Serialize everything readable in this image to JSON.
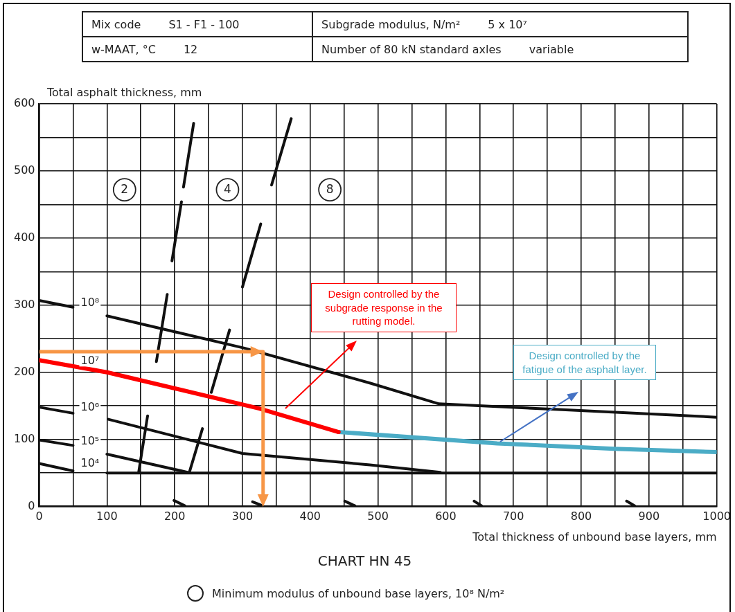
{
  "chart_data": {
    "type": "line",
    "title": "CHART HN 45",
    "xlabel": "Total thickness of unbound base layers, mm",
    "ylabel": "Total asphalt thickness, mm",
    "xlim": [
      0,
      1000
    ],
    "ylim": [
      0,
      600
    ],
    "xticks": [
      0,
      {
        "value": 50,
        "label": null
      },
      100,
      {
        "value": 150,
        "label": null
      },
      200,
      {
        "value": 250,
        "label": null
      },
      300,
      {
        "value": 350,
        "label": null
      },
      400,
      {
        "value": 450,
        "label": null
      },
      500,
      {
        "value": 550,
        "label": null
      },
      600,
      {
        "value": 650,
        "label": null
      },
      700,
      {
        "value": 750,
        "label": null
      },
      800,
      {
        "value": 850,
        "label": null
      },
      900,
      {
        "value": 950,
        "label": null
      },
      1000
    ],
    "yticks": [
      0,
      {
        "value": 50,
        "label": null
      },
      100,
      {
        "value": 150,
        "label": null
      },
      200,
      {
        "value": 250,
        "label": null
      },
      300,
      {
        "value": 350,
        "label": null
      },
      400,
      {
        "value": 450,
        "label": null
      },
      500,
      {
        "value": 550,
        "label": null
      },
      600
    ],
    "grid": true,
    "legend": false,
    "series": [
      {
        "name": "10⁸",
        "color": "#111111",
        "x": [
          0,
          50,
          75,
          100,
          303,
          488,
          590,
          756,
          1000
        ],
        "values": [
          307,
          297,
          null,
          284,
          236,
          184,
          153,
          145,
          133
        ]
      },
      {
        "name": "10⁷",
        "color": "#ff0000",
        "x": [
          0,
          100,
          325,
          442
        ],
        "values": [
          218,
          200,
          146,
          111
        ]
      },
      {
        "color": "#4bacc6",
        "x": [
          442,
          676,
          848,
          1000
        ],
        "values": [
          111,
          94,
          86,
          81
        ]
      },
      {
        "name": "10⁶",
        "color": "#111111",
        "x": [
          0,
          50,
          75,
          102,
          300,
          488,
          592
        ],
        "values": [
          148,
          139,
          null,
          130,
          79,
          62,
          51
        ]
      },
      {
        "name": "10⁵",
        "color": "#111111",
        "x": [
          0,
          50,
          75,
          100,
          219
        ],
        "values": [
          99,
          91,
          null,
          78,
          51
        ]
      },
      {
        "name": "10⁴",
        "color": "#111111",
        "x": [
          0,
          50,
          75,
          100,
          1000
        ],
        "values": [
          64,
          53,
          null,
          50,
          50
        ]
      },
      {
        "color": "#111111",
        "x": [
          228,
          213,
          212,
          210,
          196,
          193,
          189,
          173,
          166,
          160,
          147
        ],
        "values": [
          571,
          476,
          null,
          454,
          366,
          null,
          316,
          216,
          null,
          135,
          52
        ]
      },
      {
        "color": "#111111",
        "x": [
          372,
          343,
          335,
          327,
          300,
          290,
          281,
          254,
          248,
          241,
          222
        ],
        "values": [
          578,
          479,
          null,
          421,
          327,
          null,
          263,
          170,
          null,
          116,
          52
        ]
      },
      {
        "color": "#111111",
        "x": [
          199,
          215,
          250,
          315,
          330,
          400,
          451,
          466,
          550,
          642,
          653,
          750,
          867,
          879
        ],
        "values": [
          9,
          1,
          null,
          7,
          1,
          null,
          8,
          1,
          null,
          8,
          1,
          null,
          8,
          1
        ]
      }
    ],
    "annotations": [
      "Mix code",
      "S1 - F1 - 100",
      "Subgrade modulus, N/m²",
      "5 x 10⁷",
      "w-MAAT, °C",
      "12",
      "Number of 80 kN standard axles",
      "variable",
      "Design controlled by the subgrade response in the rutting model.",
      "Design controlled by the fatigue of the asphalt layer.",
      "Minimum modulus of unbound base layers, 10⁸ N/m²",
      {
        "text": "2",
        "x": 126,
        "y": 472
      },
      {
        "text": "4",
        "x": 278,
        "y": 472
      },
      {
        "text": "8",
        "x": 429,
        "y": 472
      }
    ]
  }
}
